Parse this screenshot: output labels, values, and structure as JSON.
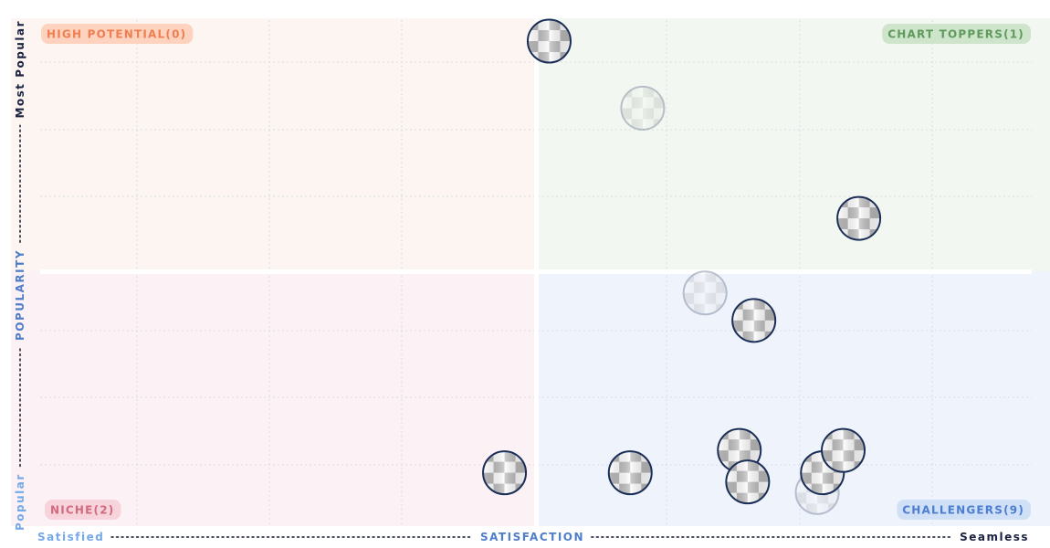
{
  "chart_data": {
    "type": "scatter",
    "title": "",
    "x_axis": {
      "label": "SATISFACTION",
      "low_label": "Satisfied",
      "high_label": "Seamless",
      "range": [
        0,
        1
      ]
    },
    "y_axis": {
      "label": "POPULARITY",
      "low_label": "Popular",
      "high_label": "Most Popular",
      "range": [
        0,
        1
      ]
    },
    "grid": true,
    "quadrants": [
      {
        "id": "high-potential",
        "label": "HIGH POTENTIAL(0)",
        "bg": "#fcf5f1",
        "badge_bg": "#fdd3bf",
        "text_color": "#ef7e50"
      },
      {
        "id": "chart-toppers",
        "label": "CHART TOPPERS(1)",
        "bg": "#f2f8f1",
        "badge_bg": "#cfe5cb",
        "text_color": "#5e9a5b"
      },
      {
        "id": "niche",
        "label": "NICHE(2)",
        "bg": "#fcf2f5",
        "badge_bg": "#f7d3db",
        "text_color": "#d26a7f"
      },
      {
        "id": "challengers",
        "label": "CHALLENGERS(9)",
        "bg": "#eff4fc",
        "badge_bg": "#cfe0f7",
        "text_color": "#4d7dd0"
      }
    ],
    "points": [
      {
        "x": 0.518,
        "y": 0.955,
        "faded": false
      },
      {
        "x": 0.475,
        "y": 0.105,
        "faded": false
      },
      {
        "x": 0.608,
        "y": 0.823,
        "faded": true
      },
      {
        "x": 0.715,
        "y": 0.405,
        "faded": false
      },
      {
        "x": 0.816,
        "y": 0.606,
        "faded": false
      },
      {
        "x": 0.668,
        "y": 0.459,
        "faded": true
      },
      {
        "x": 0.596,
        "y": 0.105,
        "faded": false
      },
      {
        "x": 0.701,
        "y": 0.149,
        "faded": false
      },
      {
        "x": 0.776,
        "y": 0.066,
        "faded": true
      },
      {
        "x": 0.781,
        "y": 0.105,
        "faded": false
      },
      {
        "x": 0.709,
        "y": 0.087,
        "faded": false
      },
      {
        "x": 0.801,
        "y": 0.149,
        "faded": false
      }
    ]
  },
  "colors": {
    "marker_stroke": "#1b2e57",
    "axis_low": "#75a9e8",
    "axis_mid": "#4f7ec8",
    "axis_high": "#1b2340",
    "grid": "#d9dde3"
  }
}
